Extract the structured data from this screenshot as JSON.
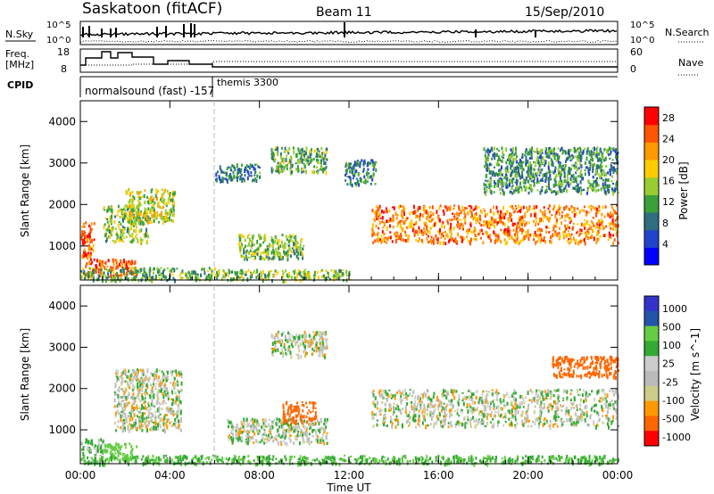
{
  "header": {
    "station": "Saskatoon (fitACF)",
    "beam": "Beam 11",
    "date": "15/Sep/2010"
  },
  "panels": {
    "nsky_label": "N.Sky",
    "nsky_ticks": [
      "10^5",
      "10^0"
    ],
    "nsearch_label": "N.Search",
    "nsearch_ticks": [
      "10^5",
      "10^0"
    ],
    "freq_label_1": "Freq.",
    "freq_label_2": "[MHz]",
    "freq_ticks": [
      "18",
      "8"
    ],
    "nave_label": "Nave",
    "nave_ticks": [
      "60",
      "0"
    ],
    "cpid_label": "CPID",
    "cpid_1": "normalsound (fast) -157",
    "cpid_2": "themis 3300"
  },
  "colors": {
    "power": [
      "#0000ff",
      "#2244cc",
      "#2f6e7f",
      "#3aa03a",
      "#99cc33",
      "#ffcc00",
      "#ff9900",
      "#ff5500",
      "#ff0000"
    ],
    "velocity": [
      "#ff0000",
      "#ff6600",
      "#ff9900",
      "#cccc88",
      "#bbbbbb",
      "#cccccc",
      "#33aa33",
      "#66cc44",
      "#2255aa",
      "#3333cc"
    ]
  },
  "chart_data": [
    {
      "type": "heatmap",
      "name": "power",
      "xlabel": "Time UT",
      "ylabel": "Slant Range [km]",
      "x_ticks": [
        "00:00",
        "04:00",
        "08:00",
        "12:00",
        "16:00",
        "20:00",
        "00:00"
      ],
      "y_ticks": [
        "1000",
        "2000",
        "3000",
        "4000"
      ],
      "xlim": [
        0,
        24
      ],
      "ylim": [
        180,
        4500
      ],
      "colorbar_label": "Power [dB]",
      "colorbar_ticks": [
        "4",
        "8",
        "12",
        "16",
        "20",
        "24",
        "28"
      ],
      "colorbar_range": [
        0,
        30
      ],
      "echo_regions": [
        {
          "t": [
            0.0,
            0.6
          ],
          "r": [
            700,
            1600
          ],
          "level": 26
        },
        {
          "t": [
            0.2,
            2.5
          ],
          "r": [
            300,
            700
          ],
          "level": 26
        },
        {
          "t": [
            1.0,
            3.0
          ],
          "r": [
            1100,
            2000
          ],
          "level": 14
        },
        {
          "t": [
            2.0,
            4.2
          ],
          "r": [
            1600,
            2400
          ],
          "level": 16
        },
        {
          "t": [
            0.0,
            6.0
          ],
          "r": [
            200,
            500
          ],
          "level": 12
        },
        {
          "t": [
            6.0,
            12.0
          ],
          "r": [
            200,
            450
          ],
          "level": 14
        },
        {
          "t": [
            7.0,
            10.0
          ],
          "r": [
            700,
            1300
          ],
          "level": 14
        },
        {
          "t": [
            8.5,
            11.0
          ],
          "r": [
            2800,
            3400
          ],
          "level": 12
        },
        {
          "t": [
            6.0,
            8.0
          ],
          "r": [
            2600,
            3000
          ],
          "level": 8
        },
        {
          "t": [
            11.8,
            13.2
          ],
          "r": [
            2500,
            3100
          ],
          "level": 8
        },
        {
          "t": [
            13.0,
            24.0
          ],
          "r": [
            1100,
            2000
          ],
          "level": 24
        },
        {
          "t": [
            18.0,
            24.0
          ],
          "r": [
            2300,
            3400
          ],
          "level": 10
        }
      ]
    },
    {
      "type": "heatmap",
      "name": "velocity",
      "xlabel": "Time UT",
      "ylabel": "Slant Range [km]",
      "x_ticks": [
        "00:00",
        "04:00",
        "08:00",
        "12:00",
        "16:00",
        "20:00",
        "00:00"
      ],
      "y_ticks": [
        "1000",
        "2000",
        "3000",
        "4000"
      ],
      "xlim": [
        0,
        24
      ],
      "ylim": [
        180,
        4500
      ],
      "colorbar_label": "Velocity [m s^-1]",
      "colorbar_ticks": [
        "1000",
        "500",
        "100",
        "25",
        "-25",
        "-100",
        "-500",
        "-1000"
      ],
      "echo_regions": [
        {
          "t": [
            0.0,
            1.0
          ],
          "r": [
            200,
            800
          ],
          "level": 50
        },
        {
          "t": [
            1.0,
            2.5
          ],
          "r": [
            300,
            700
          ],
          "level": 200
        },
        {
          "t": [
            1.5,
            4.5
          ],
          "r": [
            1000,
            2500
          ],
          "level": 0
        },
        {
          "t": [
            6.5,
            11.0
          ],
          "r": [
            700,
            1300
          ],
          "level": 0
        },
        {
          "t": [
            9.0,
            10.5
          ],
          "r": [
            1200,
            1700
          ],
          "level": -300
        },
        {
          "t": [
            8.5,
            11.0
          ],
          "r": [
            2800,
            3400
          ],
          "level": 0
        },
        {
          "t": [
            13.0,
            24.0
          ],
          "r": [
            1100,
            2000
          ],
          "level": 0
        },
        {
          "t": [
            21.0,
            24.0
          ],
          "r": [
            2300,
            2800
          ],
          "level": -300
        },
        {
          "t": [
            0.0,
            24.0
          ],
          "r": [
            200,
            400
          ],
          "level": 100
        }
      ]
    }
  ]
}
